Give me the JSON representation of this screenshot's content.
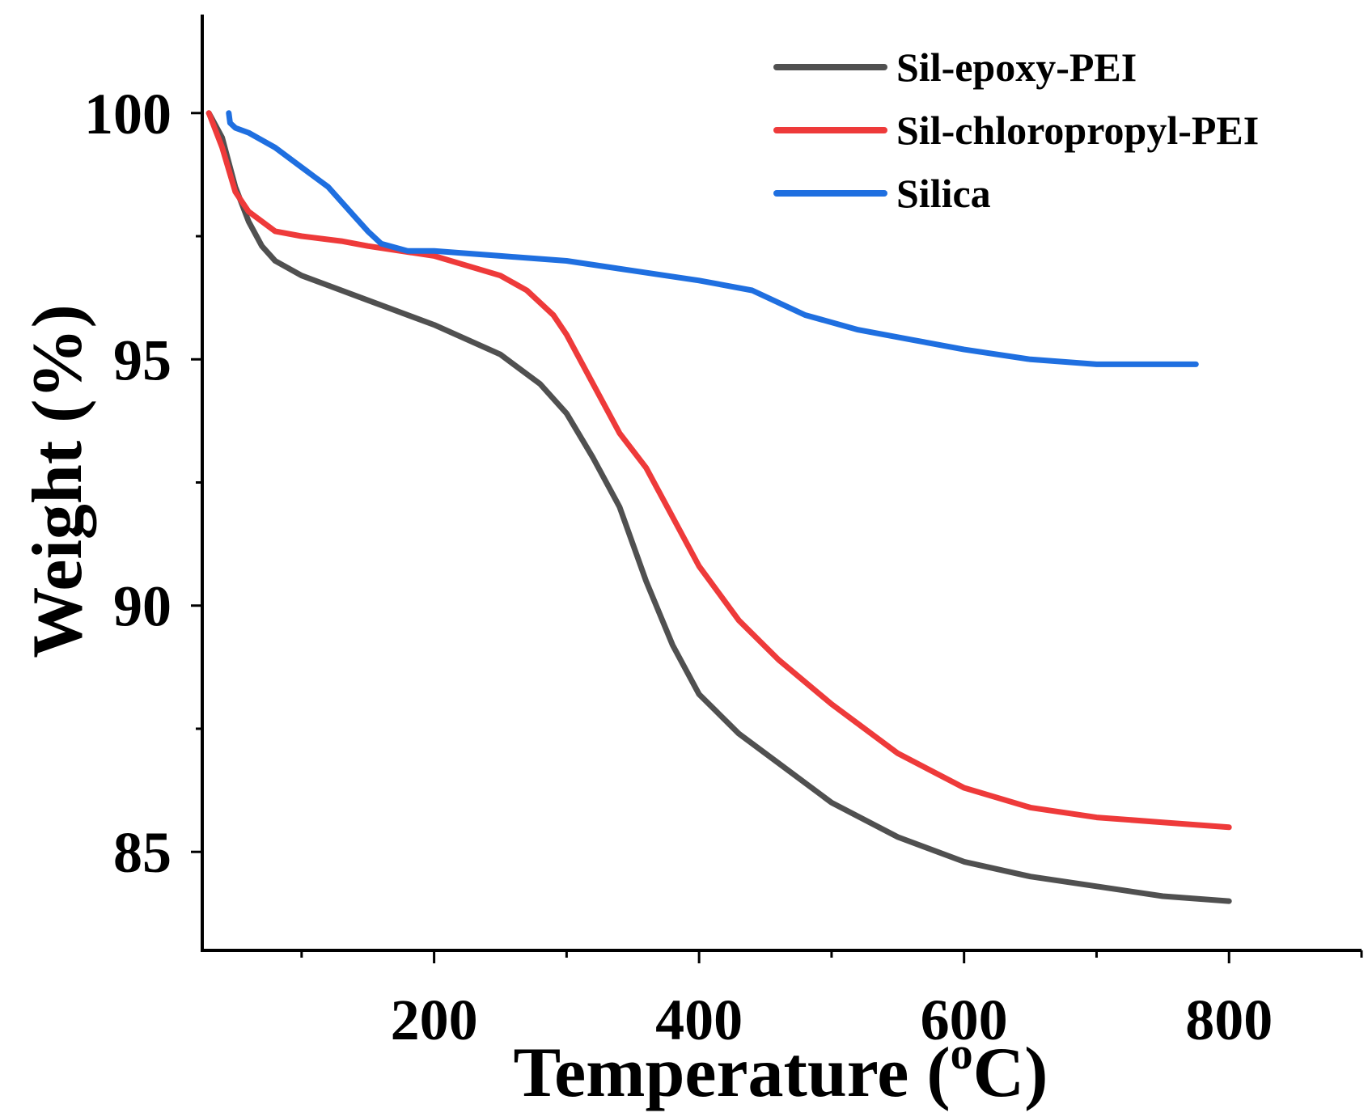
{
  "chart_data": {
    "type": "line",
    "title": "",
    "xlabel": "Temperature (",
    "xlabel_sup": "o",
    "xlabel_unit": "C)",
    "ylabel": "Weight (%)",
    "xlim": [
      25,
      900
    ],
    "ylim": [
      83,
      102
    ],
    "xticks": [
      200,
      400,
      600,
      800
    ],
    "xticks_labels": [
      "200",
      "400",
      "600",
      "800"
    ],
    "xminor": [
      100,
      300,
      500,
      700,
      900
    ],
    "yticks": [
      85,
      90,
      95,
      100
    ],
    "yticks_labels": [
      "85",
      "90",
      "95",
      "100"
    ],
    "yminor": [
      87.5,
      92.5,
      97.5
    ],
    "legend_position": "top-right",
    "series": [
      {
        "name": "Sil-epoxy-PEI",
        "color": "#505050",
        "x": [
          30,
          40,
          50,
          60,
          70,
          80,
          100,
          120,
          150,
          200,
          250,
          280,
          300,
          320,
          340,
          360,
          380,
          400,
          430,
          460,
          500,
          550,
          600,
          650,
          700,
          750,
          800
        ],
        "y": [
          100,
          99.5,
          98.5,
          97.8,
          97.3,
          97.0,
          96.7,
          96.5,
          96.2,
          95.7,
          95.1,
          94.5,
          93.9,
          93.0,
          92.0,
          90.5,
          89.2,
          88.2,
          87.4,
          86.8,
          86.0,
          85.3,
          84.8,
          84.5,
          84.3,
          84.1,
          84.0
        ]
      },
      {
        "name": "Sil-chloropropyl-PEI",
        "color": "#EE3A3A",
        "x": [
          30,
          40,
          50,
          60,
          80,
          100,
          130,
          150,
          200,
          250,
          270,
          290,
          300,
          320,
          340,
          360,
          380,
          400,
          430,
          460,
          500,
          550,
          600,
          650,
          700,
          750,
          800
        ],
        "y": [
          100,
          99.3,
          98.4,
          98.0,
          97.6,
          97.5,
          97.4,
          97.3,
          97.1,
          96.7,
          96.4,
          95.9,
          95.5,
          94.5,
          93.5,
          92.8,
          91.8,
          90.8,
          89.7,
          88.9,
          88.0,
          87.0,
          86.3,
          85.9,
          85.7,
          85.6,
          85.5
        ]
      },
      {
        "name": "Silica",
        "color": "#1F6FE0",
        "x": [
          45,
          46,
          50,
          60,
          80,
          100,
          110,
          120,
          130,
          140,
          150,
          160,
          180,
          200,
          250,
          300,
          350,
          400,
          440,
          480,
          520,
          560,
          600,
          650,
          700,
          750,
          775
        ],
        "y": [
          100,
          99.8,
          99.7,
          99.6,
          99.3,
          98.9,
          98.7,
          98.5,
          98.2,
          97.9,
          97.6,
          97.35,
          97.2,
          97.2,
          97.1,
          97.0,
          96.8,
          96.6,
          96.4,
          95.9,
          95.6,
          95.4,
          95.2,
          95.0,
          94.9,
          94.9,
          94.9
        ]
      }
    ]
  }
}
